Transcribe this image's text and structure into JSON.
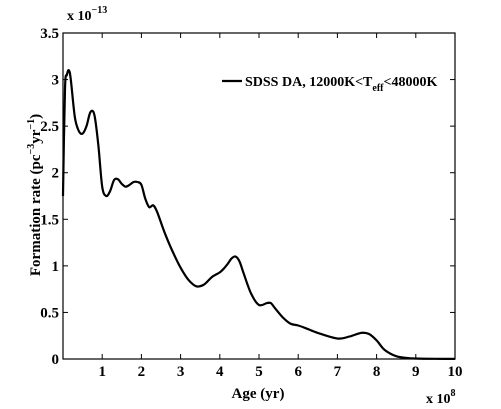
{
  "chart_data": {
    "type": "line",
    "title": "",
    "xlabel": "Age (yr)",
    "ylabel": "Formation rate (pc⁻³yr⁻¹)",
    "ylabel_parts": {
      "base": "Formation rate (pc",
      "exp1": "−3",
      "mid": "yr",
      "exp2": "−1",
      "end": ")"
    },
    "x_multiplier": {
      "base": "x 10",
      "exp": "8"
    },
    "y_multiplier": {
      "base": "x 10",
      "exp": "−13"
    },
    "xlim": [
      0,
      10
    ],
    "ylim": [
      0,
      3.5
    ],
    "x_ticks": [
      1,
      2,
      3,
      4,
      5,
      6,
      7,
      8,
      9,
      10
    ],
    "y_ticks": [
      0,
      0.5,
      1,
      1.5,
      2,
      2.5,
      3,
      3.5
    ],
    "x_tick_labels": [
      "1",
      "2",
      "3",
      "4",
      "5",
      "6",
      "7",
      "8",
      "9",
      "10"
    ],
    "y_tick_labels": [
      "0",
      "0.5",
      "1",
      "1.5",
      "2",
      "2.5",
      "3",
      "3.5"
    ],
    "grid": false,
    "legend": {
      "placement": "top-right",
      "label_parts": {
        "base": "SDSS DA, 12000K<T",
        "sub": "eff",
        "end": "<48000K"
      }
    },
    "series": [
      {
        "name": "SDSS DA, 12000K<Teff<48000K",
        "color": "#000000",
        "x": [
          0,
          0.05,
          0.1,
          0.15,
          0.2,
          0.3,
          0.4,
          0.5,
          0.6,
          0.7,
          0.8,
          0.9,
          1.0,
          1.1,
          1.2,
          1.3,
          1.4,
          1.5,
          1.6,
          1.7,
          1.8,
          1.9,
          2.0,
          2.1,
          2.2,
          2.3,
          2.4,
          2.6,
          2.8,
          3.0,
          3.2,
          3.4,
          3.6,
          3.8,
          4.0,
          4.1,
          4.2,
          4.3,
          4.4,
          4.5,
          4.6,
          4.8,
          5.0,
          5.2,
          5.3,
          5.4,
          5.6,
          5.8,
          6.0,
          6.2,
          6.5,
          7.0,
          7.3,
          7.6,
          7.8,
          8.0,
          8.2,
          8.5,
          8.8,
          9.0,
          9.5,
          10.0
        ],
        "y": [
          1.75,
          2.9,
          3.05,
          3.1,
          3.0,
          2.6,
          2.45,
          2.42,
          2.5,
          2.65,
          2.62,
          2.3,
          1.85,
          1.75,
          1.8,
          1.92,
          1.93,
          1.88,
          1.85,
          1.87,
          1.9,
          1.9,
          1.87,
          1.72,
          1.63,
          1.65,
          1.58,
          1.35,
          1.15,
          0.98,
          0.85,
          0.78,
          0.8,
          0.88,
          0.93,
          0.97,
          1.02,
          1.08,
          1.1,
          1.05,
          0.93,
          0.7,
          0.58,
          0.6,
          0.6,
          0.55,
          0.45,
          0.38,
          0.36,
          0.33,
          0.28,
          0.22,
          0.24,
          0.28,
          0.27,
          0.2,
          0.1,
          0.03,
          0.01,
          0.005,
          0.002,
          0.001
        ]
      }
    ]
  }
}
